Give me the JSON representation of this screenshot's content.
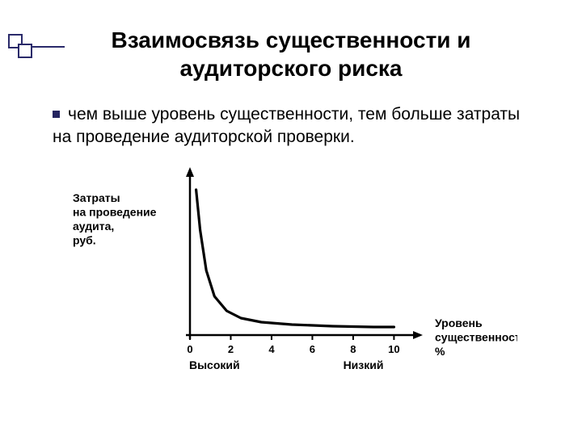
{
  "title_line1": "Взаимосвязь существенности и",
  "title_line2": "аудиторского риска",
  "title_fontsize": 28,
  "bullet_text": "чем выше уровень существенности, тем больше затраты на проведение аудиторской проверки.",
  "body_fontsize": 21,
  "chart": {
    "type": "line",
    "y_label_lines": [
      "Затраты",
      "на проведение",
      "аудита,",
      "руб."
    ],
    "x_label_lines": [
      "Уровень",
      "существенности,",
      "%"
    ],
    "x_ticks": [
      0,
      2,
      4,
      6,
      8,
      10
    ],
    "qual_left": "Высокий",
    "qual_right": "Низкий",
    "curve_points": [
      [
        0.3,
        180
      ],
      [
        0.5,
        130
      ],
      [
        0.8,
        80
      ],
      [
        1.2,
        48
      ],
      [
        1.8,
        30
      ],
      [
        2.5,
        21
      ],
      [
        3.5,
        16
      ],
      [
        5.0,
        13
      ],
      [
        7.0,
        11
      ],
      [
        9.0,
        10
      ],
      [
        10.0,
        10
      ]
    ],
    "xlim": [
      0,
      10.5
    ],
    "ylim": [
      0,
      190
    ],
    "stroke_color": "#000000",
    "stroke_width": 2.5,
    "axis_color": "#000000",
    "background": "#ffffff",
    "axis_label_fontsize": 14,
    "tick_fontsize": 13,
    "qual_fontsize": 14
  },
  "colors": {
    "text": "#000000",
    "accent": "#242460",
    "background": "#ffffff"
  }
}
